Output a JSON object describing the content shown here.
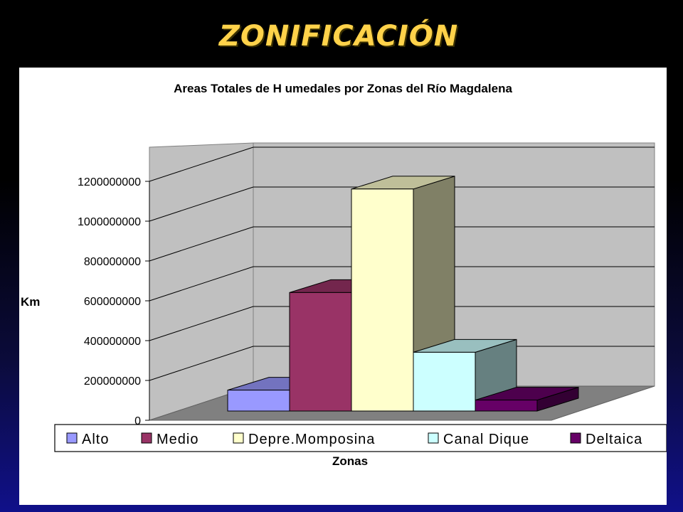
{
  "slide": {
    "title": "ZONIFICACIÓN"
  },
  "chart_data": {
    "type": "bar",
    "title": "Areas Totales de H umedales por Zonas del Río Magdalena",
    "xlabel": "Zonas",
    "ylabel": "Km",
    "ylim": [
      0,
      1200000000
    ],
    "yticks": [
      "0",
      "200000000",
      "400000000",
      "600000000",
      "800000000",
      "1000000000",
      "1200000000"
    ],
    "grid": true,
    "three_d": true,
    "legend_position": "bottom",
    "categories": [
      "Alto",
      "Medio",
      "Depre.Momposina",
      "Canal Dique",
      "Deltaica"
    ],
    "series": [
      {
        "name": "Alto",
        "value": 105000000,
        "color": "#9999ff"
      },
      {
        "name": "Medio",
        "value": 595000000,
        "color": "#993366"
      },
      {
        "name": "Depre.Momposina",
        "value": 1115000000,
        "color": "#ffffcc"
      },
      {
        "name": "Canal Dique",
        "value": 295000000,
        "color": "#ccffff"
      },
      {
        "name": "Deltaica",
        "value": 55000000,
        "color": "#660066"
      }
    ],
    "colors": {
      "back_wall": "#c0c0c0",
      "floor": "#808080",
      "gridline": "#000000"
    }
  }
}
